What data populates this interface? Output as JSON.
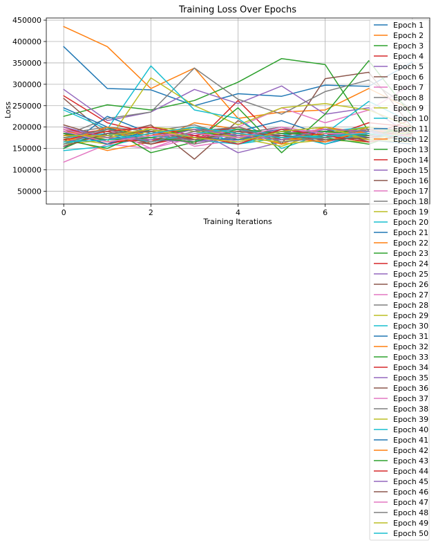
{
  "chart_data": {
    "type": "line",
    "title": "Training Loss Over Epochs",
    "xlabel": "Training Iterations",
    "ylabel": "Loss",
    "xlim": [
      -0.4,
      8.4
    ],
    "ylim": [
      20000,
      455000
    ],
    "xticks": [
      0,
      2,
      4,
      6,
      8
    ],
    "xtick_labels": [
      "0",
      "2",
      "4",
      "6",
      "8"
    ],
    "yticks": [
      50000,
      100000,
      150000,
      200000,
      250000,
      300000,
      350000,
      400000,
      450000
    ],
    "ytick_labels": [
      "50000",
      "100000",
      "150000",
      "200000",
      "250000",
      "300000",
      "350000",
      "400000",
      "450000"
    ],
    "grid": true,
    "legend_position": "upper-right",
    "x": [
      0,
      1,
      2,
      3,
      4,
      5,
      6,
      7,
      8
    ],
    "colors": [
      "#1f77b4",
      "#ff7f0e",
      "#2ca02c",
      "#d62728",
      "#9467bd",
      "#8c564b",
      "#e377c2",
      "#7f7f7f",
      "#bcbd22",
      "#17becf"
    ],
    "series": [
      {
        "name": "Epoch 1",
        "values": [
          388000,
          290000,
          287000,
          250000,
          278000,
          272000,
          298000,
          295000,
          352000
        ]
      },
      {
        "name": "Epoch 2",
        "values": [
          435000,
          388000,
          290000,
          338000,
          220000,
          235000,
          240000,
          290000,
          240000
        ]
      },
      {
        "name": "Epoch 3",
        "values": [
          225000,
          252000,
          240000,
          262000,
          305000,
          360000,
          346000,
          190000,
          165000
        ]
      },
      {
        "name": "Epoch 4",
        "values": [
          273000,
          210000,
          185000,
          160000,
          262000,
          160000,
          200000,
          180000,
          218000
        ]
      },
      {
        "name": "Epoch 5",
        "values": [
          288000,
          215000,
          235000,
          288000,
          255000,
          296000,
          230000,
          245000,
          180000
        ]
      },
      {
        "name": "Epoch 6",
        "values": [
          267000,
          180000,
          205000,
          125000,
          215000,
          160000,
          313000,
          328000,
          198000
        ]
      },
      {
        "name": "Epoch 7",
        "values": [
          118000,
          160000,
          150000,
          185000,
          200000,
          245000,
          210000,
          240000,
          300000
        ]
      },
      {
        "name": "Epoch 8",
        "values": [
          180000,
          220000,
          235000,
          338000,
          265000,
          230000,
          283000,
          310000,
          240000
        ]
      },
      {
        "name": "Epoch 9",
        "values": [
          190000,
          165000,
          315000,
          250000,
          205000,
          245000,
          255000,
          240000,
          200000
        ]
      },
      {
        "name": "Epoch 10",
        "values": [
          240000,
          195000,
          343000,
          240000,
          220000,
          150000,
          185000,
          260000,
          210000
        ]
      },
      {
        "name": "Epoch 11",
        "values": [
          150000,
          225000,
          185000,
          175000,
          190000,
          215000,
          180000,
          170000,
          160000
        ]
      },
      {
        "name": "Epoch 12",
        "values": [
          175000,
          145000,
          165000,
          210000,
          195000,
          180000,
          165000,
          200000,
          190000
        ]
      },
      {
        "name": "Epoch 13",
        "values": [
          160000,
          200000,
          140000,
          165000,
          245000,
          140000,
          230000,
          355000,
          225000
        ]
      },
      {
        "name": "Epoch 14",
        "values": [
          195000,
          160000,
          180000,
          200000,
          180000,
          190000,
          175000,
          210000,
          200000
        ]
      },
      {
        "name": "Epoch 15",
        "values": [
          165000,
          185000,
          175000,
          195000,
          140000,
          165000,
          180000,
          195000,
          185000
        ]
      },
      {
        "name": "Epoch 16",
        "values": [
          205000,
          175000,
          160000,
          185000,
          200000,
          170000,
          185000,
          175000,
          190000
        ]
      },
      {
        "name": "Epoch 17",
        "values": [
          175000,
          190000,
          200000,
          155000,
          170000,
          185000,
          195000,
          180000,
          175000
        ]
      },
      {
        "name": "Epoch 18",
        "values": [
          185000,
          200000,
          190000,
          205000,
          175000,
          180000,
          175000,
          190000,
          200000
        ]
      },
      {
        "name": "Epoch 19",
        "values": [
          160000,
          170000,
          185000,
          180000,
          195000,
          160000,
          170000,
          165000,
          180000
        ]
      },
      {
        "name": "Epoch 20",
        "values": [
          145000,
          155000,
          180000,
          170000,
          160000,
          175000,
          190000,
          200000,
          165000
        ]
      },
      {
        "name": "Epoch 21",
        "values": [
          190000,
          180000,
          165000,
          185000,
          180000,
          195000,
          160000,
          185000,
          175000
        ]
      },
      {
        "name": "Epoch 22",
        "values": [
          200000,
          165000,
          175000,
          195000,
          185000,
          170000,
          200000,
          175000,
          195000
        ]
      },
      {
        "name": "Epoch 23",
        "values": [
          170000,
          150000,
          195000,
          175000,
          165000,
          185000,
          180000,
          200000,
          185000
        ]
      },
      {
        "name": "Epoch 24",
        "values": [
          180000,
          195000,
          160000,
          180000,
          200000,
          175000,
          185000,
          170000,
          195000
        ]
      },
      {
        "name": "Epoch 25",
        "values": [
          155000,
          185000,
          170000,
          165000,
          185000,
          200000,
          165000,
          185000,
          170000
        ]
      },
      {
        "name": "Epoch 26",
        "values": [
          185000,
          170000,
          185000,
          200000,
          170000,
          180000,
          195000,
          165000,
          185000
        ]
      },
      {
        "name": "Epoch 27",
        "values": [
          165000,
          195000,
          150000,
          175000,
          195000,
          165000,
          175000,
          195000,
          180000
        ]
      },
      {
        "name": "Epoch 28",
        "values": [
          195000,
          175000,
          190000,
          160000,
          180000,
          190000,
          170000,
          180000,
          200000
        ]
      },
      {
        "name": "Epoch 29",
        "values": [
          175000,
          160000,
          200000,
          190000,
          175000,
          155000,
          190000,
          170000,
          165000
        ]
      },
      {
        "name": "Epoch 30",
        "values": [
          160000,
          185000,
          175000,
          200000,
          160000,
          185000,
          160000,
          190000,
          180000
        ]
      },
      {
        "name": "Epoch 31",
        "values": [
          245000,
          200000,
          165000,
          185000,
          195000,
          175000,
          190000,
          175000,
          185000
        ]
      },
      {
        "name": "Epoch 32",
        "values": [
          190000,
          175000,
          195000,
          170000,
          185000,
          160000,
          200000,
          185000,
          170000
        ]
      },
      {
        "name": "Epoch 33",
        "values": [
          150000,
          195000,
          180000,
          195000,
          170000,
          190000,
          175000,
          160000,
          195000
        ]
      },
      {
        "name": "Epoch 34",
        "values": [
          200000,
          165000,
          170000,
          175000,
          190000,
          175000,
          165000,
          195000,
          175000
        ]
      },
      {
        "name": "Epoch 35",
        "values": [
          185000,
          180000,
          195000,
          165000,
          175000,
          195000,
          185000,
          180000,
          190000
        ]
      },
      {
        "name": "Epoch 36",
        "values": [
          170000,
          190000,
          160000,
          190000,
          200000,
          170000,
          180000,
          165000,
          185000
        ]
      },
      {
        "name": "Epoch 37",
        "values": [
          195000,
          170000,
          185000,
          180000,
          165000,
          185000,
          195000,
          190000,
          170000
        ]
      },
      {
        "name": "Epoch 38",
        "values": [
          160000,
          195000,
          175000,
          170000,
          185000,
          200000,
          170000,
          175000,
          195000
        ]
      },
      {
        "name": "Epoch 39",
        "values": [
          180000,
          175000,
          190000,
          195000,
          175000,
          165000,
          185000,
          200000,
          180000
        ]
      },
      {
        "name": "Epoch 40",
        "values": [
          175000,
          185000,
          165000,
          185000,
          195000,
          180000,
          175000,
          185000,
          165000
        ]
      },
      {
        "name": "Epoch 41",
        "values": [
          190000,
          160000,
          195000,
          175000,
          170000,
          190000,
          200000,
          170000,
          190000
        ]
      },
      {
        "name": "Epoch 42",
        "values": [
          165000,
          200000,
          180000,
          200000,
          185000,
          175000,
          165000,
          195000,
          175000
        ]
      },
      {
        "name": "Epoch 43",
        "values": [
          185000,
          170000,
          175000,
          165000,
          195000,
          185000,
          190000,
          180000,
          200000
        ]
      },
      {
        "name": "Epoch 44",
        "values": [
          170000,
          190000,
          200000,
          180000,
          160000,
          195000,
          180000,
          165000,
          185000
        ]
      },
      {
        "name": "Epoch 45",
        "values": [
          200000,
          175000,
          170000,
          195000,
          180000,
          170000,
          195000,
          190000,
          170000
        ]
      },
      {
        "name": "Epoch 46",
        "values": [
          155000,
          185000,
          190000,
          170000,
          190000,
          180000,
          170000,
          175000,
          195000
        ]
      },
      {
        "name": "Epoch 47",
        "values": [
          190000,
          165000,
          180000,
          185000,
          175000,
          200000,
          185000,
          185000,
          180000
        ]
      },
      {
        "name": "Epoch 48",
        "values": [
          175000,
          195000,
          165000,
          190000,
          200000,
          165000,
          175000,
          195000,
          165000
        ]
      },
      {
        "name": "Epoch 49",
        "values": [
          180000,
          180000,
          195000,
          175000,
          165000,
          190000,
          200000,
          170000,
          190000
        ]
      },
      {
        "name": "Epoch 50",
        "values": [
          165000,
          170000,
          185000,
          200000,
          185000,
          175000,
          180000,
          185000,
          175000
        ]
      }
    ]
  }
}
